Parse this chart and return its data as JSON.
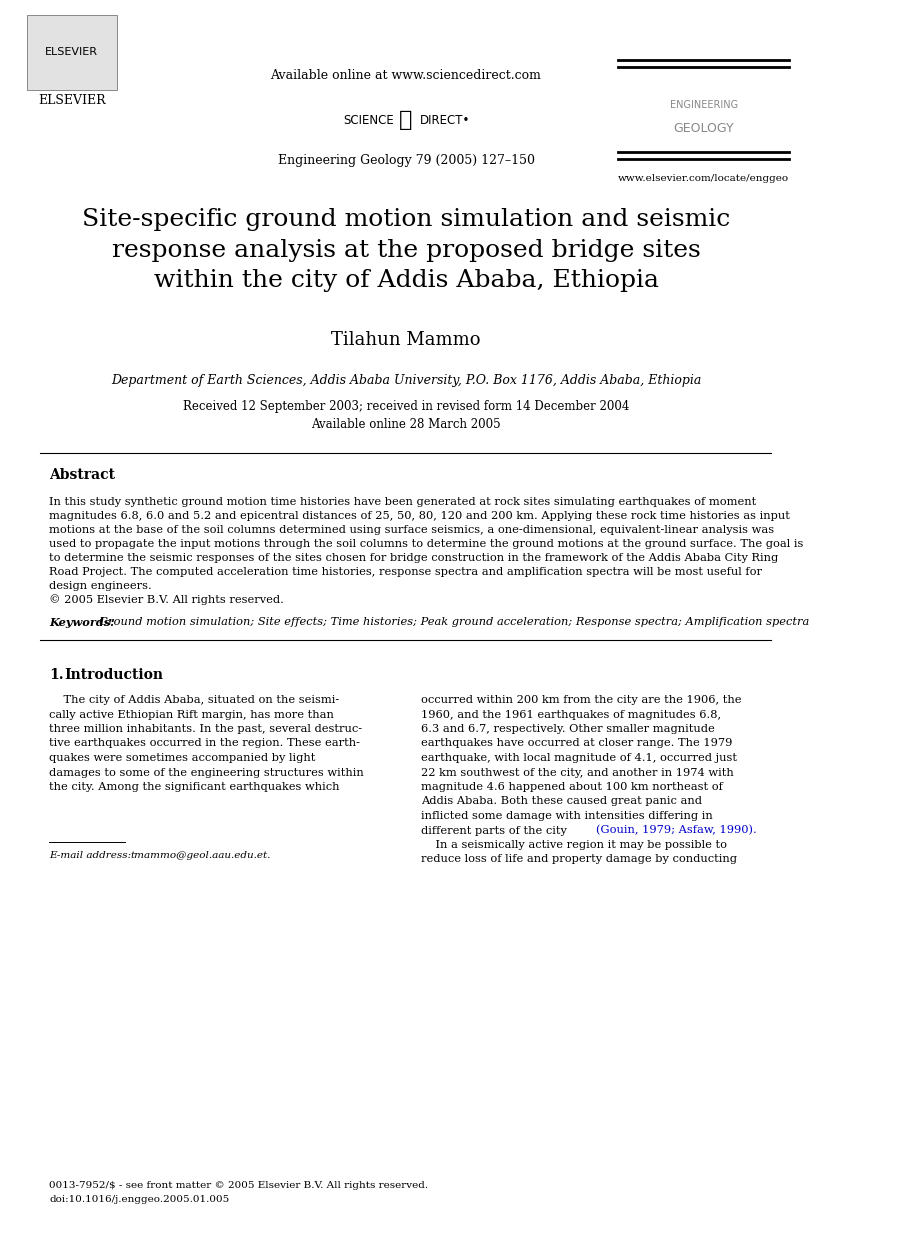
{
  "bg_color": "#ffffff",
  "header": {
    "available_online": "Available online at www.sciencedirect.com",
    "journal_info": "Engineering Geology 79 (2005) 127–150",
    "website": "www.elsevier.com/locate/enggeo",
    "sciencedirect_text": "SCIENCE é DIRECT•",
    "engineering_geology_logo": "ENGINEERING\nGEOLOGY"
  },
  "title": "Site-specific ground motion simulation and seismic\nresponse analysis at the proposed bridge sites\nwithin the city of Addis Ababa, Ethiopia",
  "author": "Tilahun Mammo",
  "affiliation": "Department of Earth Sciences, Addis Ababa University, P.O. Box 1176, Addis Ababa, Ethiopia",
  "dates": "Received 12 September 2003; received in revised form 14 December 2004\nAvailable online 28 March 2005",
  "abstract_title": "Abstract",
  "abstract_text": "In this study synthetic ground motion time histories have been generated at rock sites simulating earthquakes of moment magnitudes 6.8, 6.0 and 5.2 and epicentral distances of 25, 50, 80, 120 and 200 km. Applying these rock time histories as input motions at the base of the soil columns determined using surface seismics, a one-dimensional, equivalent-linear analysis was used to propagate the input motions through the soil columns to determine the ground motions at the ground surface. The goal is to determine the seismic responses of the sites chosen for bridge construction in the framework of the Addis Ababa City Ring Road Project. The computed acceleration time histories, response spectra and amplification spectra will be most useful for design engineers.\n© 2005 Elsevier B.V. All rights reserved.",
  "keywords_label": "Keywords:",
  "keywords_text": "Ground motion simulation; Site effects; Time histories; Peak ground acceleration; Response spectra; Amplification spectra",
  "section1_title": "1.  Introduction",
  "section1_col1": "    The city of Addis Ababa, situated on the seismically active Ethiopian Rift margin, has more than three million inhabitants. In the past, several destructive earthquakes occurred in the region. These earthquakes were sometimes accompanied by light damages to some of the engineering structures within the city. Among the significant earthquakes which",
  "section1_col2": "occurred within 200 km from the city are the 1906, the 1960, and the 1961 earthquakes of magnitudes 6.8, 6.3 and 6.7, respectively. Other smaller magnitude earthquakes have occurred at closer range. The 1979 earthquake, with local magnitude of 4.1, occurred just 22 km southwest of the city, and another in 1974 with magnitude 4.6 happened about 100 km northeast of Addis Ababa. Both these caused great panic and inflicted some damage with intensities differing in different parts of the city (Gouin, 1979; Asfaw, 1990).\n    In a seismically active region it may be possible to reduce loss of life and property damage by conducting",
  "footnote": "E-mail address: tmammo@geol.aau.edu.et.",
  "footer1": "0013-7952/$ - see front matter © 2005 Elsevier B.V. All rights reserved.",
  "footer2": "doi:10.1016/j.enggeo.2005.01.005",
  "citation_color": "#0000cc"
}
